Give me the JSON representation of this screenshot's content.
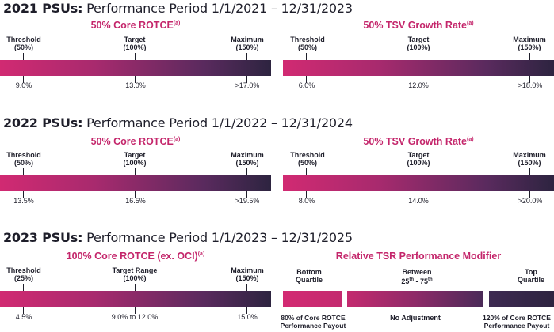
{
  "sections": [
    {
      "year_label": "2021 PSUs:",
      "period": " Performance Period 1/1/2021 – 12/31/2023",
      "metrics": [
        {
          "title": "50% Core ROTCE",
          "superscript": "(a)",
          "threshold": {
            "label": "Threshold",
            "pct": "(50%)",
            "value": "9.0%"
          },
          "target": {
            "label": "Target",
            "pct": "(100%)",
            "value": "13.0%"
          },
          "maximum": {
            "label": "Maximum",
            "pct": "(150%)",
            "value": ">17.0%"
          }
        },
        {
          "title": "50% TSV Growth Rate",
          "superscript": "(a)",
          "threshold": {
            "label": "Threshold",
            "pct": "(50%)",
            "value": "6.0%"
          },
          "target": {
            "label": "Target",
            "pct": "(100%)",
            "value": "12.0%"
          },
          "maximum": {
            "label": "Maximum",
            "pct": "(150%)",
            "value": ">18.0%"
          }
        }
      ]
    },
    {
      "year_label": "2022 PSUs:",
      "period": " Performance Period 1/1/2022 – 12/31/2024",
      "metrics": [
        {
          "title": "50% Core ROTCE",
          "superscript": "(a)",
          "threshold": {
            "label": "Threshold",
            "pct": "(50%)",
            "value": "13.5%"
          },
          "target": {
            "label": "Target",
            "pct": "(100%)",
            "value": "16.5%"
          },
          "maximum": {
            "label": "Maximum",
            "pct": "(150%)",
            "value": ">19.5%"
          }
        },
        {
          "title": "50% TSV Growth Rate",
          "superscript": "(a)",
          "threshold": {
            "label": "Threshold",
            "pct": "(50%)",
            "value": "8.0%"
          },
          "target": {
            "label": "Target",
            "pct": "(100%)",
            "value": "14.0%"
          },
          "maximum": {
            "label": "Maximum",
            "pct": "(150%)",
            "value": ">20.0%"
          }
        }
      ]
    },
    {
      "year_label": "2023 PSUs:",
      "period": " Performance Period 1/1/2023 – 12/31/2025",
      "metric": {
        "title": "100% Core ROTCE (ex. OCI)",
        "superscript": "(a)",
        "threshold": {
          "label": "Threshold",
          "pct": "(25%)",
          "value": "4.5%"
        },
        "target": {
          "label": "Target Range",
          "pct": "(100%)",
          "value": "9.0% to 12.0%"
        },
        "maximum": {
          "label": "Maximum",
          "pct": "(150%)",
          "value": "15.0%"
        }
      },
      "modifier": {
        "title": "Relative TSR Performance Modifier",
        "bottom": {
          "label1": "Bottom",
          "label2": "Quartile",
          "note1": "80% of Core ROTCE",
          "note2": "Performance Payout"
        },
        "middle": {
          "label1": "Between",
          "label2_pre": "25",
          "label2_sup1": "th",
          "label2_mid": " - 75",
          "label2_sup2": "th",
          "note": "No Adjustment"
        },
        "top": {
          "label1": "Top",
          "label2": "Quartile",
          "note1": "120% of Core ROTCE",
          "note2": "Performance Payout"
        }
      }
    }
  ]
}
